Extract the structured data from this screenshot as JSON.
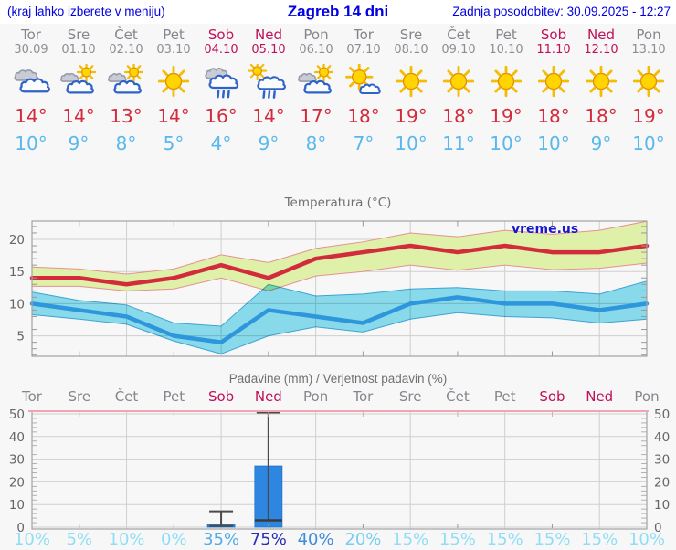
{
  "header": {
    "left_note": "(kraj lahko izberete v meniju)",
    "title": "Zagreb 14 dni",
    "updated": "Zadnja posodobitev: 30.09.2025 - 12:27"
  },
  "watermark": "vreme.us",
  "days": [
    {
      "name": "Tor",
      "date": "30.09",
      "weekend": false,
      "icon": "cloudy",
      "tmax": "14°",
      "tmin": "10°"
    },
    {
      "name": "Sre",
      "date": "01.10",
      "weekend": false,
      "icon": "partly-cloudy",
      "tmax": "14°",
      "tmin": "9°"
    },
    {
      "name": "Čet",
      "date": "02.10",
      "weekend": false,
      "icon": "partly-cloudy",
      "tmax": "13°",
      "tmin": "8°"
    },
    {
      "name": "Pet",
      "date": "03.10",
      "weekend": false,
      "icon": "sunny",
      "tmax": "14°",
      "tmin": "5°"
    },
    {
      "name": "Sob",
      "date": "04.10",
      "weekend": true,
      "icon": "rain",
      "tmax": "16°",
      "tmin": "4°"
    },
    {
      "name": "Ned",
      "date": "05.10",
      "weekend": true,
      "icon": "showers",
      "tmax": "14°",
      "tmin": "9°"
    },
    {
      "name": "Pon",
      "date": "06.10",
      "weekend": false,
      "icon": "partly-cloudy",
      "tmax": "17°",
      "tmin": "8°"
    },
    {
      "name": "Tor",
      "date": "07.10",
      "weekend": false,
      "icon": "mostly-sunny",
      "tmax": "18°",
      "tmin": "7°"
    },
    {
      "name": "Sre",
      "date": "08.10",
      "weekend": false,
      "icon": "sunny",
      "tmax": "19°",
      "tmin": "10°"
    },
    {
      "name": "Čet",
      "date": "09.10",
      "weekend": false,
      "icon": "sunny",
      "tmax": "18°",
      "tmin": "11°"
    },
    {
      "name": "Pet",
      "date": "10.10",
      "weekend": false,
      "icon": "sunny",
      "tmax": "19°",
      "tmin": "10°"
    },
    {
      "name": "Sob",
      "date": "11.10",
      "weekend": true,
      "icon": "sunny",
      "tmax": "18°",
      "tmin": "10°"
    },
    {
      "name": "Ned",
      "date": "12.10",
      "weekend": true,
      "icon": "sunny",
      "tmax": "18°",
      "tmin": "9°"
    },
    {
      "name": "Pon",
      "date": "13.10",
      "weekend": false,
      "icon": "sunny",
      "tmax": "19°",
      "tmin": "10°"
    }
  ],
  "chart_data": [
    {
      "type": "line",
      "title": "Temperatura (°C)",
      "x_labels": [
        "Tor",
        "Sre",
        "Čet",
        "Pet",
        "Sob",
        "Ned",
        "Pon",
        "Tor",
        "Sre",
        "Čet",
        "Pet",
        "Sob",
        "Ned",
        "Pon"
      ],
      "ylim": [
        1.8,
        22.8
      ],
      "yticks": [
        5,
        10,
        15,
        20
      ],
      "grid": true,
      "series": [
        {
          "name": "max temperature",
          "color": "#d22c3c",
          "values": [
            14,
            14,
            13,
            14,
            16,
            14,
            17,
            18,
            19,
            18,
            19,
            18,
            18,
            19
          ],
          "band_top": [
            15.7,
            15.4,
            14.6,
            15.4,
            17.6,
            16.4,
            18.6,
            19.6,
            21.0,
            20.4,
            21.4,
            20.8,
            21.4,
            22.8
          ],
          "band_bottom": [
            12.7,
            12.7,
            12.0,
            12.3,
            14.0,
            12.0,
            14.3,
            15.0,
            16.0,
            15.2,
            16.0,
            15.3,
            15.5,
            16.3
          ],
          "band_color": "#dff0a8",
          "band_edge": "#e89090"
        },
        {
          "name": "min temperature",
          "color": "#2e96dc",
          "values": [
            10,
            9,
            8,
            5,
            4,
            9,
            8,
            7,
            10,
            11,
            10,
            10,
            9,
            10
          ],
          "band_top": [
            11.8,
            10.5,
            9.8,
            7.0,
            6.5,
            13.0,
            11.2,
            11.5,
            12.3,
            12.5,
            12.0,
            12.0,
            11.5,
            13.5
          ],
          "band_bottom": [
            8.3,
            7.6,
            6.8,
            4.2,
            2.2,
            5.0,
            6.4,
            5.6,
            7.6,
            8.6,
            8.0,
            7.8,
            7.0,
            7.6
          ],
          "band_color": "#8ce0f0",
          "band_edge": "#3fa8dc"
        }
      ]
    },
    {
      "type": "bar",
      "title": "Padavine (mm) / Verjetnost padavin (%)",
      "x_labels": [
        "Tor",
        "Sre",
        "Čet",
        "Pet",
        "Sob",
        "Ned",
        "Pon",
        "Tor",
        "Sre",
        "Čet",
        "Pet",
        "Sob",
        "Ned",
        "Pon"
      ],
      "ylim": [
        0,
        52
      ],
      "yticks": [
        0,
        10,
        20,
        30,
        40,
        50
      ],
      "values": [
        0,
        0,
        0,
        0,
        1.2,
        27,
        0,
        0,
        0,
        0,
        0,
        0,
        0,
        0
      ],
      "whiskers": [
        null,
        null,
        null,
        null,
        {
          "low": 0.5,
          "high": 7
        },
        {
          "median": 3,
          "high": 52
        },
        null,
        null,
        null,
        null,
        null,
        null,
        null,
        null
      ],
      "probabilities": [
        "10%",
        "5%",
        "10%",
        "0%",
        "35%",
        "75%",
        "40%",
        "20%",
        "15%",
        "15%",
        "15%",
        "15%",
        "15%",
        "10%"
      ],
      "prob_colors": [
        "#8edef6",
        "#8edef6",
        "#8edef6",
        "#8edef6",
        "#52ace6",
        "#2a30b4",
        "#3e8cdc",
        "#74cef2",
        "#8edef6",
        "#8edef6",
        "#8edef6",
        "#8edef6",
        "#8edef6",
        "#8edef6"
      ],
      "bar_color": "#2e86e0",
      "whisker_color": "#4a4a4a",
      "top_line_color": "#f0a4b4"
    }
  ]
}
